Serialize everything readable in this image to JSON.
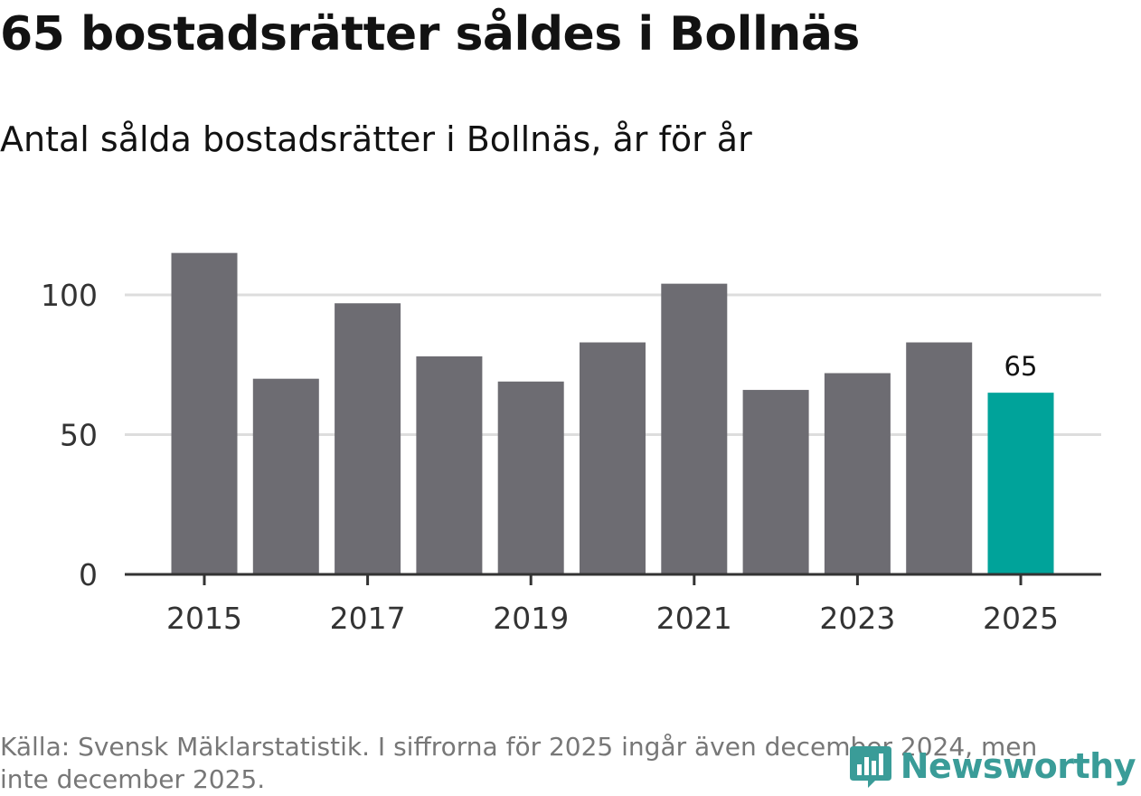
{
  "title": "65 bostadsrätter såldes i Bollnäs",
  "subtitle": "Antal sålda bostadsrätter i Bollnäs, år för år",
  "footer": "Källa: Svensk Mäklarstatistik. I siffrorna för 2025 ingår även december 2024, men inte december 2025.",
  "brand": {
    "name": "Newsworthy",
    "icon": "newsworthy-logo-icon"
  },
  "colors": {
    "bar": "#6d6c72",
    "highlight": "#00a39a",
    "grid": "#dddddd",
    "axis": "#333333",
    "brand": "#3a9c98"
  },
  "chart_data": {
    "type": "bar",
    "title": "65 bostadsrätter såldes i Bollnäs",
    "subtitle": "Antal sålda bostadsrätter i Bollnäs, år för år",
    "xlabel": "",
    "ylabel": "",
    "categories": [
      "2015",
      "2016",
      "2017",
      "2018",
      "2019",
      "2020",
      "2021",
      "2022",
      "2023",
      "2024",
      "2025"
    ],
    "values": [
      115,
      70,
      97,
      78,
      69,
      83,
      104,
      66,
      72,
      83,
      65
    ],
    "highlight_index": 10,
    "data_labels": [
      {
        "index": 10,
        "text": "65"
      }
    ],
    "x_tick_labels": [
      "2015",
      "2017",
      "2019",
      "2021",
      "2023",
      "2025"
    ],
    "y_ticks": [
      0,
      50,
      100
    ],
    "y_tick_labels": [
      "0",
      "50",
      "100"
    ],
    "ylim": [
      0,
      115
    ],
    "grid": true,
    "legend": "none"
  }
}
